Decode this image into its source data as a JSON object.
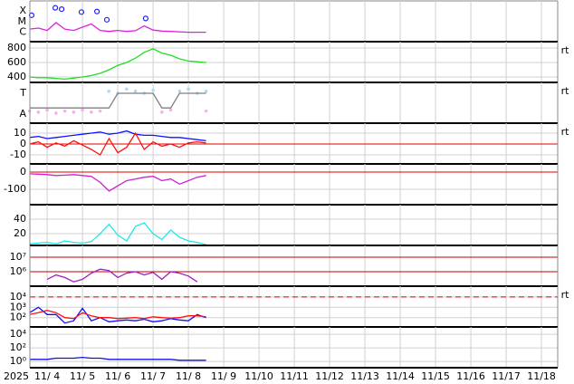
{
  "chart_data": [
    {
      "type": "line",
      "log": true,
      "grid": false,
      "ylim": [
        1.3e-07,
        0.0009
      ],
      "yticks": [
        {
          "value": 0.0001,
          "label": "X"
        },
        {
          "value": 1e-05,
          "label": "M"
        },
        {
          "value": 1e-06,
          "label": "C"
        }
      ],
      "x": [
        3.5,
        3.75,
        4,
        4.25,
        4.5,
        4.75,
        5,
        5.25,
        5.5,
        5.75,
        6,
        6.25,
        6.5,
        6.75,
        7,
        7.25,
        7.5,
        7.75,
        8,
        8.25,
        8.5
      ],
      "series": [
        {
          "color": "#e020e0",
          "values": [
            2e-06,
            2.5e-06,
            1.5e-06,
            8e-06,
            2e-06,
            1.5e-06,
            3e-06,
            6e-06,
            1.5e-06,
            1.2e-06,
            1.5e-06,
            1.2e-06,
            1.4e-06,
            4e-06,
            1.6e-06,
            1.3e-06,
            1.2e-06,
            1.1e-06,
            1e-06,
            1e-06,
            1e-06
          ]
        },
        {
          "color": "#2020ff",
          "marker": "circle",
          "x": [
            3.56,
            4.23,
            4.41,
            4.97,
            5.41,
            5.69,
            6.79
          ],
          "values": [
            4e-05,
            0.0002,
            0.00015,
            8e-05,
            9e-05,
            1.5e-05,
            2e-05
          ]
        }
      ]
    },
    {
      "type": "line",
      "log": false,
      "grid": true,
      "ylim": [
        325,
        887
      ],
      "yticks": [
        400,
        600,
        800
      ],
      "side_label": "rt",
      "x": [
        3.5,
        3.75,
        4,
        4.25,
        4.5,
        4.75,
        5,
        5.25,
        5.5,
        5.75,
        6,
        6.25,
        6.5,
        6.75,
        7,
        7.25,
        7.5,
        7.75,
        8,
        8.25,
        8.5
      ],
      "series": [
        {
          "color": "#20e020",
          "values": [
            400,
            390,
            390,
            380,
            370,
            385,
            400,
            420,
            450,
            500,
            560,
            600,
            660,
            740,
            790,
            730,
            700,
            650,
            620,
            610,
            600
          ]
        }
      ]
    },
    {
      "type": "line",
      "log": false,
      "grid": false,
      "ylim": [
        -0.43,
        1.52
      ],
      "yticks": [
        {
          "value": 1,
          "label": "T"
        },
        {
          "value": 0,
          "label": "A"
        }
      ],
      "side_label": "rt",
      "x": [
        3.5,
        3.75,
        4,
        4.25,
        4.5,
        4.75,
        5,
        5.25,
        5.5,
        5.75,
        6,
        6.25,
        6.5,
        6.75,
        7,
        7.25,
        7.5,
        7.75,
        8,
        8.25,
        8.5
      ],
      "series": [
        {
          "color": "#f5b0ee",
          "mode": "dots",
          "values": [
            0.15,
            0.1,
            0.2,
            0.05,
            0.15,
            0.1,
            0.2,
            0.1,
            0.15,
            null,
            null,
            null,
            null,
            null,
            null,
            0.1,
            0.2,
            null,
            null,
            null,
            0.15
          ]
        },
        {
          "color": "#a8dcf8",
          "mode": "dots",
          "values": [
            null,
            null,
            null,
            null,
            null,
            null,
            null,
            null,
            null,
            1.1,
            1.0,
            1.2,
            1.1,
            1.0,
            1.15,
            null,
            null,
            1.1,
            1.2,
            1.0,
            1.1
          ]
        },
        {
          "color": "#808080",
          "values": [
            0.3,
            0.3,
            0.3,
            0.3,
            0.3,
            0.3,
            0.3,
            0.3,
            0.3,
            0.3,
            1,
            1,
            1,
            1,
            1,
            0.3,
            0.3,
            1,
            1,
            1,
            1
          ]
        }
      ]
    },
    {
      "type": "line",
      "log": false,
      "grid": true,
      "ylim": [
        -18.3,
        19.2
      ],
      "yticks": [
        10,
        0,
        -10
      ],
      "side_label": "rt",
      "hlines": [
        {
          "value": 0,
          "color": "#e00000"
        }
      ],
      "x": [
        3.5,
        3.75,
        4,
        4.25,
        4.5,
        4.75,
        5,
        5.25,
        5.5,
        5.75,
        6,
        6.25,
        6.5,
        6.75,
        7,
        7.25,
        7.5,
        7.75,
        8,
        8.25,
        8.5
      ],
      "series": [
        {
          "color": "#1010ff",
          "values": [
            6,
            7,
            5,
            6,
            7,
            8,
            9,
            10,
            11,
            9,
            10,
            12,
            9,
            8,
            8,
            7,
            6,
            6,
            5,
            4,
            3
          ]
        },
        {
          "color": "#ff1010",
          "values": [
            0,
            2,
            -3,
            1,
            -2,
            3,
            -1,
            -5,
            -10,
            5,
            -8,
            -3,
            10,
            -5,
            2,
            -2,
            0,
            -3,
            1,
            2,
            1
          ]
        }
      ]
    },
    {
      "type": "line",
      "log": false,
      "grid": true,
      "ylim": [
        -189,
        47
      ],
      "yticks": [
        0,
        -100
      ],
      "hlines": [
        {
          "value": 0,
          "color": "#e00000"
        }
      ],
      "x": [
        3.5,
        3.75,
        4,
        4.25,
        4.5,
        4.75,
        5,
        5.25,
        5.5,
        5.75,
        6,
        6.25,
        6.5,
        6.75,
        7,
        7.25,
        7.5,
        7.75,
        8,
        8.25,
        8.5
      ],
      "series": [
        {
          "color": "#d020d0",
          "values": [
            -10,
            -12,
            -15,
            -20,
            -18,
            -15,
            -20,
            -25,
            -60,
            -110,
            -80,
            -50,
            -40,
            -30,
            -25,
            -50,
            -40,
            -70,
            -50,
            -30,
            -20
          ]
        }
      ]
    },
    {
      "type": "line",
      "log": false,
      "grid": true,
      "ylim": [
        3.75,
        60
      ],
      "yticks": [
        20,
        40
      ],
      "x": [
        3.5,
        3.75,
        4,
        4.25,
        4.5,
        4.75,
        5,
        5.25,
        5.5,
        5.75,
        6,
        6.25,
        6.5,
        6.75,
        7,
        7.25,
        7.5,
        7.75,
        8,
        8.25,
        8.5
      ],
      "series": [
        {
          "color": "#20e8e8",
          "values": [
            6,
            7,
            8,
            6,
            10,
            8,
            7,
            9,
            20,
            33,
            18,
            10,
            30,
            35,
            20,
            12,
            25,
            15,
            10,
            8,
            5
          ]
        }
      ]
    },
    {
      "type": "line",
      "log": true,
      "grid": true,
      "ylim": [
        100000.0,
        65000000.0
      ],
      "yticks": [
        {
          "value": 10000000.0,
          "label": "10⁷"
        },
        {
          "value": 1000000.0,
          "label": "10⁶"
        }
      ],
      "hlines": [
        {
          "value": 10000000.0,
          "color": "#c00000"
        },
        {
          "value": 1000000.0,
          "color": "#c00000"
        }
      ],
      "x": [
        3.5,
        3.75,
        4,
        4.25,
        4.5,
        4.75,
        5,
        5.25,
        5.5,
        5.75,
        6,
        6.25,
        6.5,
        6.75,
        7,
        7.25,
        7.5,
        7.75,
        8,
        8.25,
        8.5
      ],
      "series": [
        {
          "color": "#a020c0",
          "values": [
            null,
            null,
            300000.0,
            600000.0,
            400000.0,
            200000.0,
            300000.0,
            800000.0,
            1500000.0,
            1200000.0,
            400000.0,
            800000.0,
            1000000.0,
            600000.0,
            900000.0,
            300000.0,
            1000000.0,
            800000.0,
            500000.0,
            200000.0,
            null
          ]
        }
      ]
    },
    {
      "type": "line",
      "log": true,
      "grid": true,
      "ylim": [
        12.6,
        110000.0
      ],
      "side_label": "rt",
      "yticks": [
        {
          "value": 10000.0,
          "label": "10⁴"
        },
        {
          "value": 1000.0,
          "label": "10³"
        },
        {
          "value": 100,
          "label": "10²"
        }
      ],
      "hlines": [
        {
          "value": 10000.0,
          "color": "#e00000",
          "dashed": true
        }
      ],
      "x": [
        3.5,
        3.75,
        4,
        4.25,
        4.5,
        4.75,
        5,
        5.25,
        5.5,
        5.75,
        6,
        6.25,
        6.5,
        6.75,
        7,
        7.25,
        7.5,
        7.75,
        8,
        8.25,
        8.5
      ],
      "series": [
        {
          "color": "#1010ff",
          "values": [
            300,
            1000,
            200,
            200,
            30,
            50,
            800,
            50,
            100,
            40,
            50,
            60,
            50,
            70,
            40,
            50,
            80,
            60,
            50,
            200,
            100
          ]
        },
        {
          "color": "#ff1010",
          "values": [
            200,
            300,
            500,
            300,
            100,
            80,
            300,
            150,
            100,
            100,
            80,
            90,
            100,
            80,
            120,
            100,
            90,
            100,
            150,
            150,
            120
          ]
        }
      ]
    },
    {
      "type": "line",
      "log": true,
      "grid": true,
      "ylim": [
        0.12,
        120000.0
      ],
      "yticks": [
        {
          "value": 10000.0,
          "label": "10⁴"
        },
        {
          "value": 100,
          "label": "10²"
        },
        {
          "value": 1,
          "label": "10⁰"
        }
      ],
      "x": [
        3.5,
        3.75,
        4,
        4.25,
        4.5,
        4.75,
        5,
        5.25,
        5.5,
        5.75,
        6,
        6.25,
        6.5,
        6.75,
        7,
        7.25,
        7.5,
        7.75,
        8,
        8.25,
        8.5
      ],
      "series": [
        {
          "color": "#1010e0",
          "values": [
            2,
            2,
            2,
            3,
            3,
            3,
            4,
            3,
            3,
            2,
            2,
            2,
            2,
            2,
            2,
            2,
            2,
            1.5,
            1.5,
            1.5,
            1.5
          ]
        }
      ]
    }
  ],
  "x_axis": {
    "year_label": "2025",
    "xlim": [
      3.51,
      18.46
    ],
    "xticks": [
      {
        "value": 4,
        "label": "11/ 4"
      },
      {
        "value": 5,
        "label": "11/ 5"
      },
      {
        "value": 6,
        "label": "11/ 6"
      },
      {
        "value": 7,
        "label": "11/ 7"
      },
      {
        "value": 8,
        "label": "11/ 8"
      },
      {
        "value": 9,
        "label": "11/ 9"
      },
      {
        "value": 10,
        "label": "11/10"
      },
      {
        "value": 11,
        "label": "11/11"
      },
      {
        "value": 12,
        "label": "11/12"
      },
      {
        "value": 13,
        "label": "11/13"
      },
      {
        "value": 14,
        "label": "11/14"
      },
      {
        "value": 15,
        "label": "11/15"
      },
      {
        "value": 16,
        "label": "11/16"
      },
      {
        "value": 17,
        "label": "11/17"
      },
      {
        "value": 18,
        "label": "11/18"
      }
    ]
  }
}
